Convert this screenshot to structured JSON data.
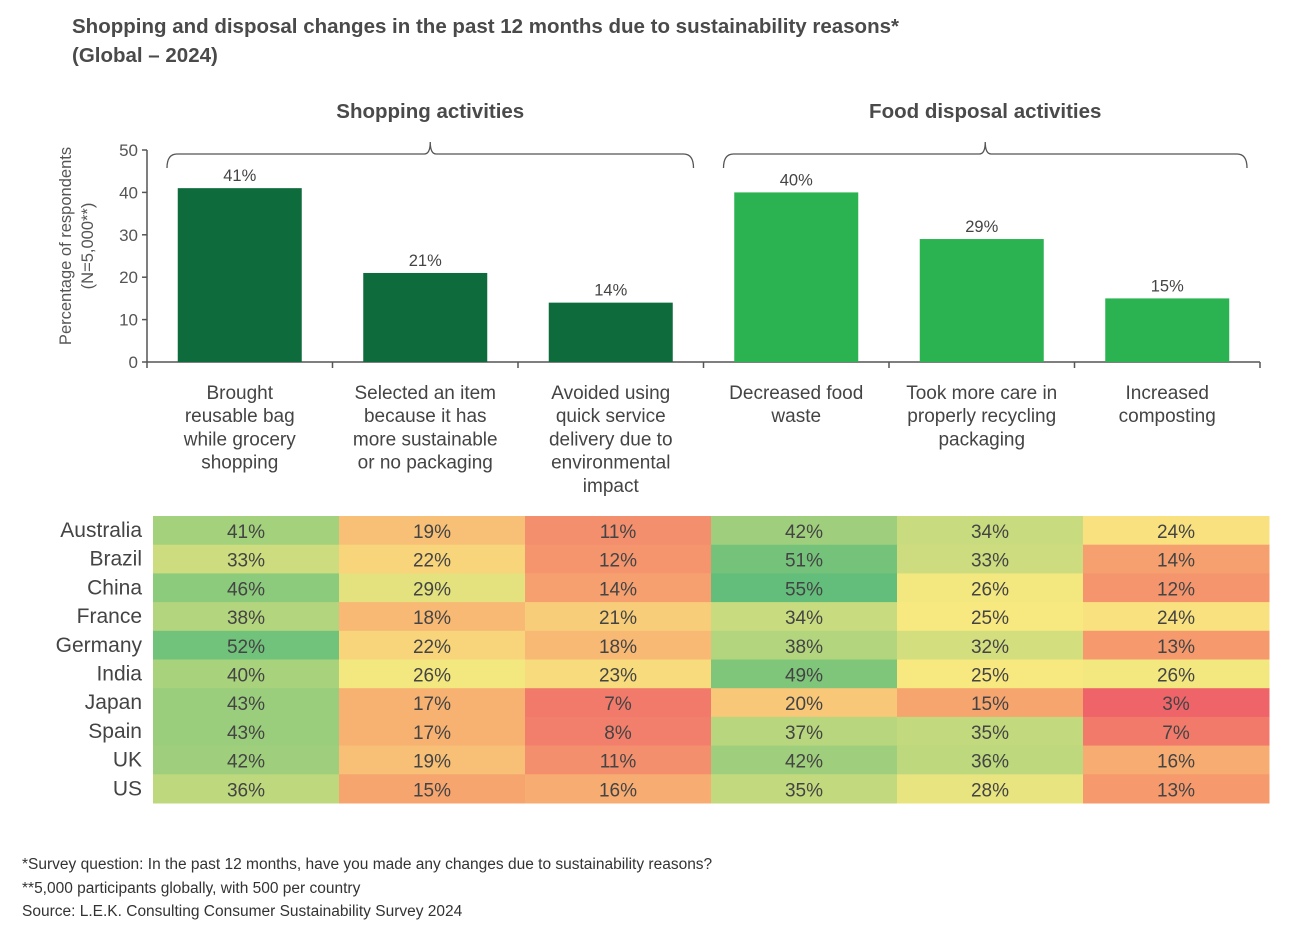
{
  "title_line1": "Shopping and disposal changes in the past 12 months due to sustainability reasons*",
  "title_line2": "(Global – 2024)",
  "footnotes": [
    "*Survey question: In the past 12 months, have you made any changes due to sustainability reasons?",
    "**5,000 participants globally, with 500 per country",
    "Source: L.E.K. Consulting Consumer Sustainability Survey 2024"
  ],
  "chart_data": [
    {
      "type": "bar",
      "ylabel": "Percentage of respondents",
      "ylabel2": "(N=5,000**)",
      "ylim": [
        0,
        50
      ],
      "yticks": [
        0,
        10,
        20,
        30,
        40,
        50
      ],
      "groups": [
        {
          "label": "Shopping activities",
          "color": "#0e6b3c",
          "categories": [
            0,
            1,
            2
          ]
        },
        {
          "label": "Food disposal activities",
          "color": "#2bb352",
          "categories": [
            3,
            4,
            5
          ]
        }
      ],
      "categories": [
        [
          "Brought",
          "reusable bag",
          "while grocery",
          "shopping"
        ],
        [
          "Selected an item",
          "because it has",
          "more sustainable",
          "or no packaging"
        ],
        [
          "Avoided using",
          "quick service",
          "delivery due to",
          "environmental",
          "impact"
        ],
        [
          "Decreased food",
          "waste"
        ],
        [
          "Took more care in",
          "properly recycling",
          "packaging"
        ],
        [
          "Increased",
          "composting"
        ]
      ],
      "values": [
        41,
        21,
        14,
        40,
        29,
        15
      ],
      "data_labels": [
        "41%",
        "21%",
        "14%",
        "40%",
        "29%",
        "15%"
      ]
    },
    {
      "type": "heatmap",
      "rows": [
        "Australia",
        "Brazil",
        "China",
        "France",
        "Germany",
        "India",
        "Japan",
        "Spain",
        "UK",
        "US"
      ],
      "color_scale": {
        "low": "#ee6469",
        "mid": "#f8e880",
        "high": "#63be7b"
      },
      "values": [
        [
          41,
          19,
          11,
          42,
          34,
          24
        ],
        [
          33,
          22,
          12,
          51,
          33,
          14
        ],
        [
          46,
          29,
          14,
          55,
          26,
          12
        ],
        [
          38,
          18,
          21,
          34,
          25,
          24
        ],
        [
          52,
          22,
          18,
          38,
          32,
          13
        ],
        [
          40,
          26,
          23,
          49,
          25,
          26
        ],
        [
          43,
          17,
          7,
          20,
          15,
          3
        ],
        [
          43,
          17,
          8,
          37,
          35,
          7
        ],
        [
          42,
          19,
          11,
          42,
          36,
          16
        ],
        [
          36,
          15,
          16,
          35,
          28,
          13
        ]
      ],
      "labels": [
        [
          "41%",
          "19%",
          "11%",
          "42%",
          "34%",
          "24%"
        ],
        [
          "33%",
          "22%",
          "12%",
          "51%",
          "33%",
          "14%"
        ],
        [
          "46%",
          "29%",
          "14%",
          "55%",
          "26%",
          "12%"
        ],
        [
          "38%",
          "18%",
          "21%",
          "34%",
          "25%",
          "24%"
        ],
        [
          "52%",
          "22%",
          "18%",
          "38%",
          "32%",
          "13%"
        ],
        [
          "40%",
          "26%",
          "23%",
          "49%",
          "25%",
          "26%"
        ],
        [
          "43%",
          "17%",
          "7%",
          "20%",
          "15%",
          "3%"
        ],
        [
          "43%",
          "17%",
          "8%",
          "37%",
          "35%",
          "7%"
        ],
        [
          "42%",
          "19%",
          "11%",
          "42%",
          "36%",
          "16%"
        ],
        [
          "36%",
          "15%",
          "16%",
          "35%",
          "28%",
          "13%"
        ]
      ]
    }
  ]
}
